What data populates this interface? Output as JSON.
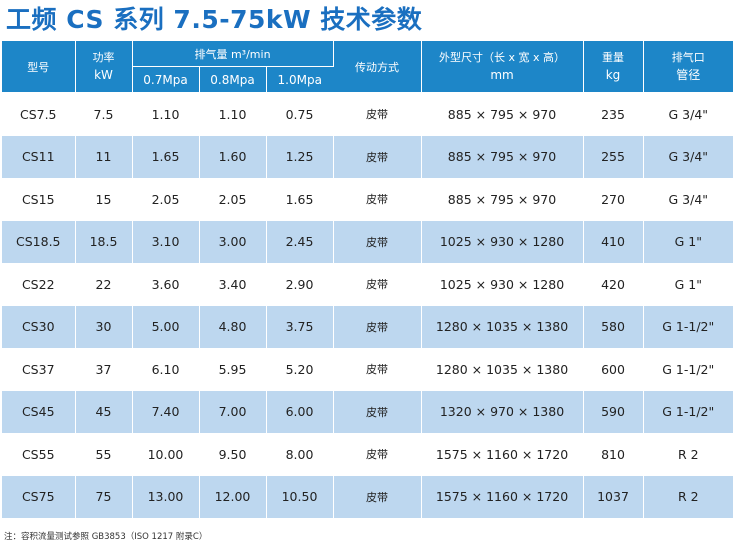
{
  "title": "工频 CS 系列 7.5-75kW 技术参数",
  "header": {
    "model": "型号",
    "power_cn": "功率",
    "power_unit": "kW",
    "discharge": "排气量 m³/min",
    "pressures": [
      "0.7Mpa",
      "0.8Mpa",
      "1.0Mpa"
    ],
    "drive": "传动方式",
    "dims_cn": "外型尺寸（长 x 宽 x 高）",
    "dims_unit": "mm",
    "weight_cn": "重量",
    "weight_unit": "kg",
    "outlet_cn": "排气口",
    "outlet_cn2": "管径"
  },
  "rows": [
    {
      "model": "CS7.5",
      "power": "7.5",
      "q07": "1.10",
      "q08": "1.10",
      "q10": "0.75",
      "drive": "皮带",
      "dims": "885 × 795 × 970",
      "weight": "235",
      "outlet": "G 3/4\""
    },
    {
      "model": "CS11",
      "power": "11",
      "q07": "1.65",
      "q08": "1.60",
      "q10": "1.25",
      "drive": "皮带",
      "dims": "885 × 795 × 970",
      "weight": "255",
      "outlet": "G 3/4\""
    },
    {
      "model": "CS15",
      "power": "15",
      "q07": "2.05",
      "q08": "2.05",
      "q10": "1.65",
      "drive": "皮带",
      "dims": "885 × 795 × 970",
      "weight": "270",
      "outlet": "G 3/4\""
    },
    {
      "model": "CS18.5",
      "power": "18.5",
      "q07": "3.10",
      "q08": "3.00",
      "q10": "2.45",
      "drive": "皮带",
      "dims": "1025 × 930 × 1280",
      "weight": "410",
      "outlet": "G 1\""
    },
    {
      "model": "CS22",
      "power": "22",
      "q07": "3.60",
      "q08": "3.40",
      "q10": "2.90",
      "drive": "皮带",
      "dims": "1025 × 930 × 1280",
      "weight": "420",
      "outlet": "G 1\""
    },
    {
      "model": "CS30",
      "power": "30",
      "q07": "5.00",
      "q08": "4.80",
      "q10": "3.75",
      "drive": "皮带",
      "dims": "1280 × 1035 × 1380",
      "weight": "580",
      "outlet": "G 1-1/2\""
    },
    {
      "model": "CS37",
      "power": "37",
      "q07": "6.10",
      "q08": "5.95",
      "q10": "5.20",
      "drive": "皮带",
      "dims": "1280 × 1035 × 1380",
      "weight": "600",
      "outlet": "G 1-1/2\""
    },
    {
      "model": "CS45",
      "power": "45",
      "q07": "7.40",
      "q08": "7.00",
      "q10": "6.00",
      "drive": "皮带",
      "dims": "1320 × 970 × 1380",
      "weight": "590",
      "outlet": "G 1-1/2\""
    },
    {
      "model": "CS55",
      "power": "55",
      "q07": "10.00",
      "q08": "9.50",
      "q10": "8.00",
      "drive": "皮带",
      "dims": "1575 × 1160 × 1720",
      "weight": "810",
      "outlet": "R 2"
    },
    {
      "model": "CS75",
      "power": "75",
      "q07": "13.00",
      "q08": "12.00",
      "q10": "10.50",
      "drive": "皮带",
      "dims": "1575 × 1160 × 1720",
      "weight": "1037",
      "outlet": "R 2"
    }
  ],
  "note": "注：容积流量测试参照 GB3853（ISO 1217 附录C）",
  "colors": {
    "header_bg": "#1d86c8",
    "title": "#1a6fc0",
    "stripe": "#bdd7ef"
  }
}
